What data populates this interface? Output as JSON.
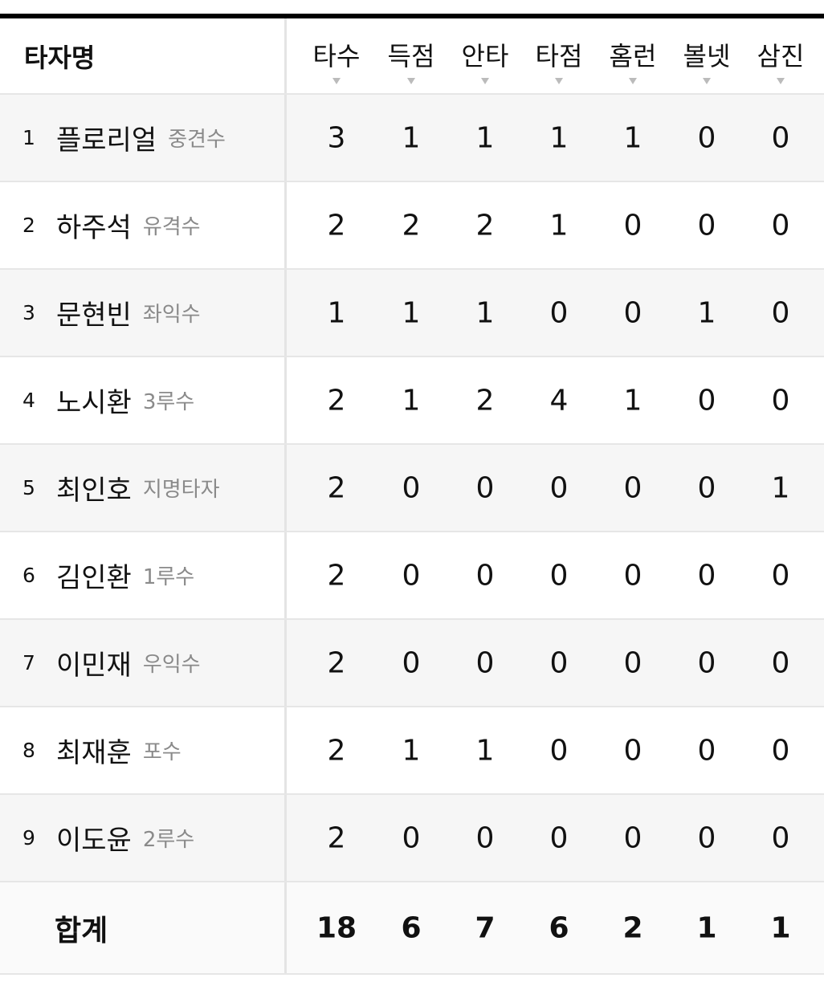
{
  "header": {
    "name_col": "타자명",
    "columns": [
      "타수",
      "득점",
      "안타",
      "타점",
      "홈런",
      "볼넷",
      "삼진"
    ]
  },
  "players": [
    {
      "order": "1",
      "name": "플로리얼",
      "position": "중견수",
      "stats": [
        "3",
        "1",
        "1",
        "1",
        "1",
        "0",
        "0"
      ]
    },
    {
      "order": "2",
      "name": "하주석",
      "position": "유격수",
      "stats": [
        "2",
        "2",
        "2",
        "1",
        "0",
        "0",
        "0"
      ]
    },
    {
      "order": "3",
      "name": "문현빈",
      "position": "좌익수",
      "stats": [
        "1",
        "1",
        "1",
        "0",
        "0",
        "1",
        "0"
      ]
    },
    {
      "order": "4",
      "name": "노시환",
      "position": "3루수",
      "stats": [
        "2",
        "1",
        "2",
        "4",
        "1",
        "0",
        "0"
      ]
    },
    {
      "order": "5",
      "name": "최인호",
      "position": "지명타자",
      "stats": [
        "2",
        "0",
        "0",
        "0",
        "0",
        "0",
        "1"
      ]
    },
    {
      "order": "6",
      "name": "김인환",
      "position": "1루수",
      "stats": [
        "2",
        "0",
        "0",
        "0",
        "0",
        "0",
        "0"
      ]
    },
    {
      "order": "7",
      "name": "이민재",
      "position": "우익수",
      "stats": [
        "2",
        "0",
        "0",
        "0",
        "0",
        "0",
        "0"
      ]
    },
    {
      "order": "8",
      "name": "최재훈",
      "position": "포수",
      "stats": [
        "2",
        "1",
        "1",
        "0",
        "0",
        "0",
        "0"
      ]
    },
    {
      "order": "9",
      "name": "이도윤",
      "position": "2루수",
      "stats": [
        "2",
        "0",
        "0",
        "0",
        "0",
        "0",
        "0"
      ]
    }
  ],
  "total": {
    "label": "합계",
    "stats": [
      "18",
      "6",
      "7",
      "6",
      "2",
      "1",
      "1"
    ]
  }
}
